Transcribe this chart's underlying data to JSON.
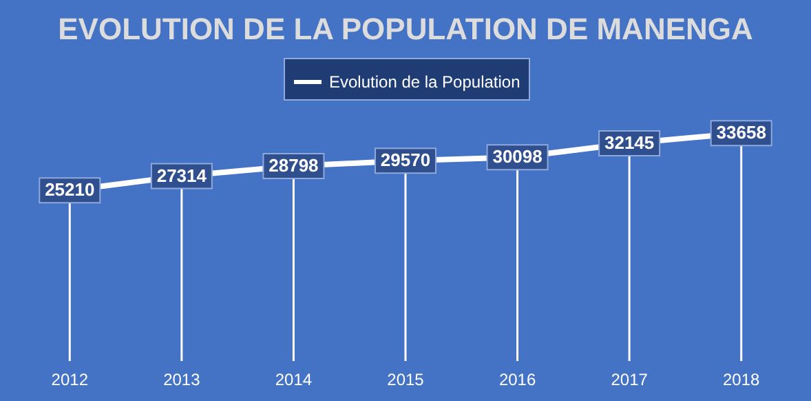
{
  "chart_data": {
    "type": "line",
    "title": "EVOLUTION DE LA POPULATION DE MANENGA",
    "categories": [
      "2012",
      "2013",
      "2014",
      "2015",
      "2016",
      "2017",
      "2018"
    ],
    "series": [
      {
        "name": "Evolution de la Population",
        "color": "#ffffff",
        "values": [
          25210,
          27314,
          28798,
          29570,
          30098,
          32145,
          33658
        ]
      }
    ],
    "data_labels": true,
    "legend": "top",
    "grid": "x",
    "marker": "square",
    "line_style": "solid"
  }
}
